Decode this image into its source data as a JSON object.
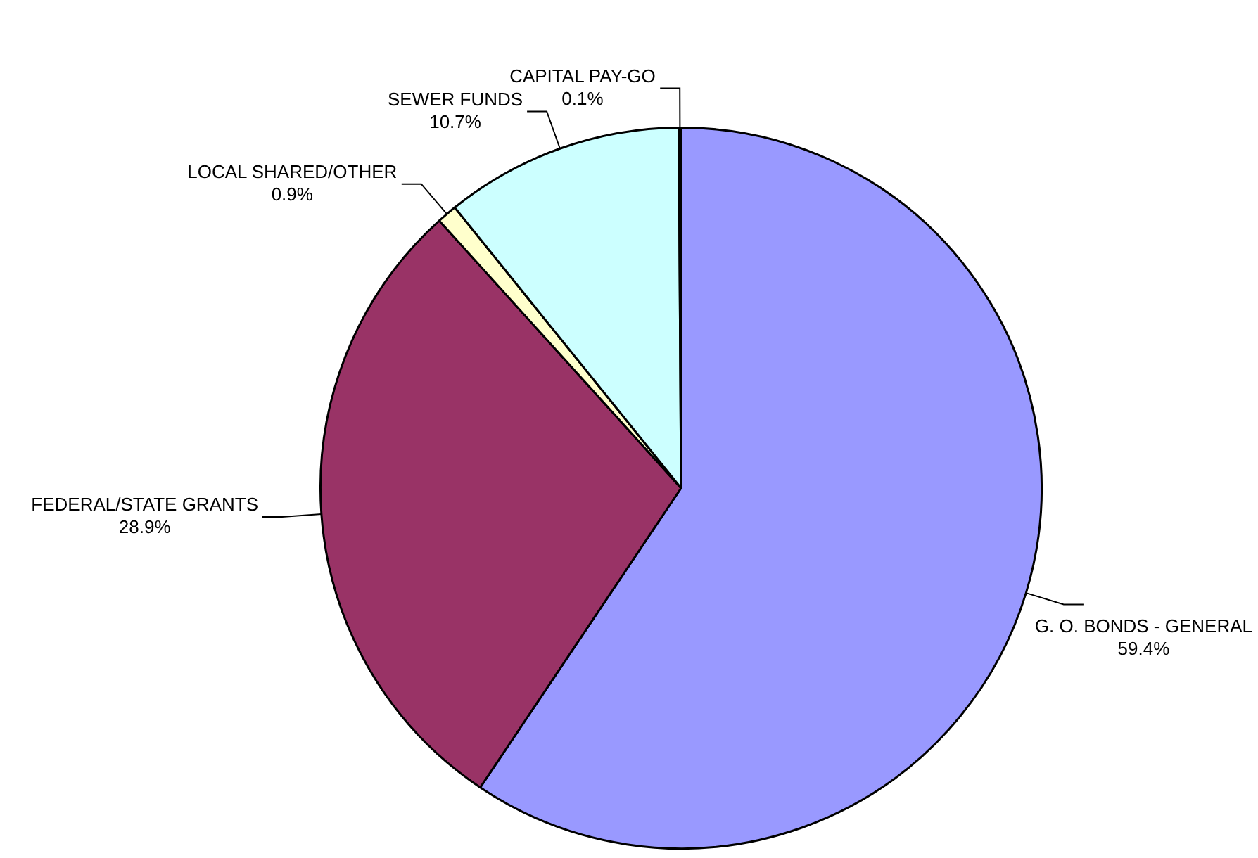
{
  "chart_data": {
    "type": "pie",
    "categories": [
      "G. O. BONDS - GENERAL",
      "FEDERAL/STATE GRANTS",
      "LOCAL SHARED/OTHER",
      "SEWER FUNDS",
      "CAPITAL PAY-GO"
    ],
    "values": [
      59.4,
      28.9,
      0.9,
      10.7,
      0.1
    ],
    "value_labels": [
      "59.4%",
      "28.9%",
      "0.9%",
      "10.7%",
      "0.1%"
    ],
    "colors": [
      "#9999ff",
      "#993366",
      "#ffffcc",
      "#ccffff",
      "#000080"
    ],
    "legend": false
  }
}
